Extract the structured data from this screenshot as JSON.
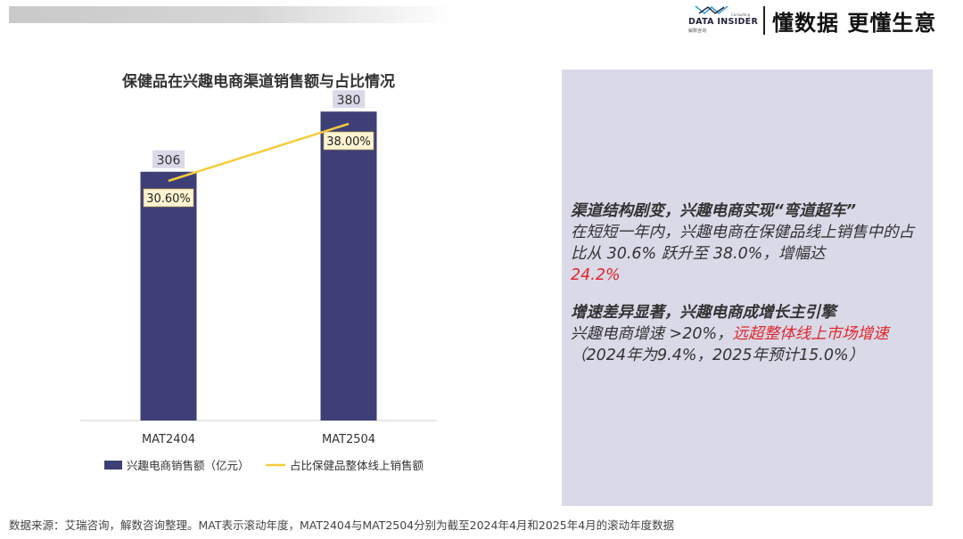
{
  "header": {
    "logo_text": "DATA INSIDER",
    "logo_sub": "解数咨询",
    "logo_consult": "Consulting",
    "slogan": "懂数据 更懂生意"
  },
  "colors": {
    "bar": "#3f3f78",
    "line": "#f5cc3c",
    "label_bg": "#d9d9e8",
    "pct_label_bg": "#fff4d2",
    "highlight": "#e0282d"
  },
  "chart_data": {
    "type": "bar",
    "title": "保健品在兴趣电商渠道销售额与占比情况",
    "categories": [
      "MAT2404",
      "MAT2504"
    ],
    "series": [
      {
        "name": "兴趣电商销售额（亿元）",
        "type": "bar",
        "values": [
          306,
          380
        ],
        "labels": [
          "306",
          "380"
        ]
      },
      {
        "name": "占比保健品整体线上销售额",
        "type": "line",
        "values": [
          30.6,
          38.0
        ],
        "labels": [
          "30.60%",
          "38.00%"
        ]
      }
    ],
    "ylim": [
      0,
      400
    ],
    "grid": false,
    "legend_position": "bottom"
  },
  "info": {
    "p1_title": "渠道结构剧变，兴趣电商实现“弯道超车”",
    "p1_body": "在短短一年内，兴趣电商在保健品线上销售中的占比从 30.6% 跃升至 38.0%，增幅达",
    "p1_highlight": "24.2%",
    "p2_title": "增速差异显著，兴趣电商成增长主引擎",
    "p2_body_a": "兴趣电商增速 >20%，",
    "p2_highlight": "远超整体线上市场增速",
    "p2_body_b": "（2024年为9.4%，2025年预计15.0%）"
  },
  "footer": {
    "source": "数据来源：艾瑞咨询，解数咨询整理。MAT表示滚动年度，MAT2404与MAT2504分别为截至2024年4月和2025年4月的滚动年度数据"
  }
}
